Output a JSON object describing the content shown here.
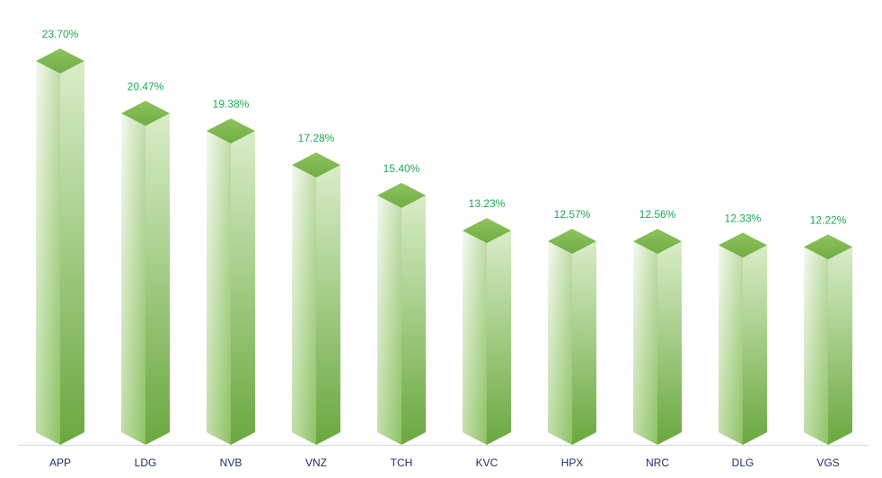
{
  "chart_data": {
    "type": "bar",
    "categories": [
      "APP",
      "LDG",
      "NVB",
      "VNZ",
      "TCH",
      "KVC",
      "HPX",
      "NRC",
      "DLG",
      "VGS"
    ],
    "values": [
      23.7,
      20.47,
      19.38,
      17.28,
      15.4,
      13.23,
      12.57,
      12.56,
      12.33,
      12.22
    ],
    "data_labels": [
      "23.70%",
      "20.47%",
      "19.38%",
      "17.28%",
      "15.40%",
      "13.23%",
      "12.57%",
      "12.56%",
      "12.33%",
      "12.22%"
    ],
    "title": "",
    "xlabel": "",
    "ylabel": "",
    "ylim": [
      0,
      25
    ],
    "grid": false,
    "legend": "none",
    "style": "3d-prism"
  },
  "colors": {
    "bar_front_light": "#f4f9ef",
    "bar_front_dark": "#8dc262",
    "bar_side_light": "#d9edc8",
    "bar_side_dark": "#6aa83f",
    "bar_top": "#72ad45",
    "data_label": "#1aaa55",
    "category_label": "#1f2d6b",
    "axis_line": "#d9d9d9"
  }
}
